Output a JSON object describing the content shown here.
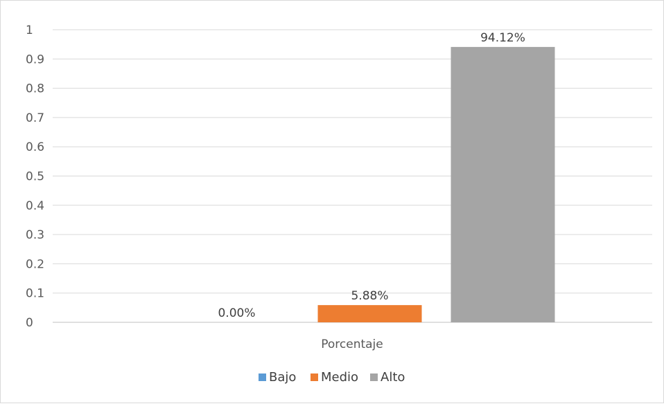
{
  "chart_data": {
    "type": "bar",
    "categories": [
      "Porcentaje"
    ],
    "series": [
      {
        "name": "Bajo",
        "values": [
          0.0
        ],
        "label": "0.00%",
        "color": "#5b9bd5"
      },
      {
        "name": "Medio",
        "values": [
          0.0588
        ],
        "label": "5.88%",
        "color": "#ed7d31"
      },
      {
        "name": "Alto",
        "values": [
          0.9412
        ],
        "label": "94.12%",
        "color": "#a5a5a5"
      }
    ],
    "yticks": [
      "0",
      "0.1",
      "0.2",
      "0.3",
      "0.4",
      "0.5",
      "0.6",
      "0.7",
      "0.8",
      "0.9",
      "1"
    ],
    "ylim": [
      0,
      1
    ],
    "grid": true,
    "legend_position": "bottom",
    "title": "",
    "xlabel": "",
    "ylabel": ""
  }
}
